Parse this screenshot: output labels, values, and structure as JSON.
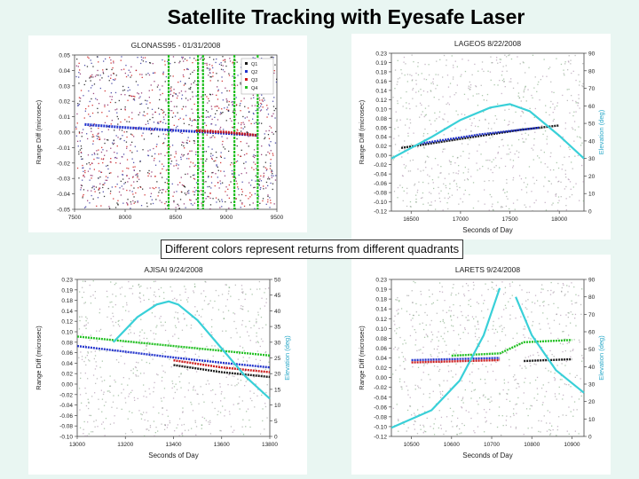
{
  "page": {
    "title": "Satellite Tracking with Eyesafe Laser",
    "caption": "Different colors represent returns from different quadrants"
  },
  "colors": {
    "background": "#e9f6f2",
    "q1": "#1a1a1a",
    "q2": "#2233cc",
    "q3": "#cc1a1a",
    "q4": "#22c022",
    "elevation": "#39d0d8",
    "noise_a": "#8a2a6a",
    "noise_b": "#3a3aa0"
  },
  "chart_data": [
    {
      "type": "scatter",
      "title": "GLONASS95 - 01/31/2008",
      "ylabel": "Range Diff (microsec)",
      "y_ticks": [
        "0.05",
        "0.04",
        "0.03",
        "0.02",
        "0.01",
        "0.00",
        "-0.01",
        "-0.02",
        "-0.03",
        "-0.04",
        "-0.05"
      ],
      "x_ticks": [
        "7500",
        "8000",
        "8500",
        "9000",
        "9500"
      ],
      "xlim": [
        7500,
        9500
      ],
      "ylim": [
        -0.05,
        0.05
      ],
      "legend": [
        "Q1",
        "Q2",
        "Q3",
        "Q4"
      ],
      "legend_position": "top-right",
      "vertical_bands_x": [
        8430,
        8720,
        8770,
        9080,
        9310
      ],
      "series": [
        {
          "name": "Q1",
          "values": []
        },
        {
          "name": "Q2",
          "x": [
            7600,
            8000,
            8400,
            8800,
            9300
          ],
          "y": [
            0.005,
            0.003,
            0.0015,
            0.0,
            -0.002
          ]
        },
        {
          "name": "Q3",
          "x": [
            8700,
            9000,
            9300
          ],
          "y": [
            0.001,
            0.0,
            -0.002
          ]
        },
        {
          "name": "Q4",
          "values": []
        }
      ]
    },
    {
      "type": "scatter",
      "title": "LAGEOS 8/22/2008",
      "xlabel": "Seconds of Day",
      "ylabel": "Range Diff (microsec)",
      "y2label": "Elevation (deg)",
      "y_ticks": [
        "0.23",
        "0.19",
        "0.18",
        "0.16",
        "0.14",
        "0.12",
        "0.10",
        "0.08",
        "0.06",
        "0.04",
        "0.02",
        "0.00",
        "-0.02",
        "-0.04",
        "-0.06",
        "-0.08",
        "-0.10",
        "-0.12"
      ],
      "y2_ticks": [
        "90",
        "80",
        "70",
        "60",
        "50",
        "40",
        "30",
        "20",
        "10",
        "0"
      ],
      "x_ticks": [
        "16500",
        "17000",
        "17500",
        "18000"
      ],
      "xlim": [
        16300,
        18250
      ],
      "ylim": [
        -0.12,
        0.23
      ],
      "y2lim": [
        0,
        90
      ],
      "elevation": {
        "x": [
          16300,
          16700,
          17000,
          17300,
          17500,
          17700,
          18000,
          18250
        ],
        "y": [
          30,
          42,
          52,
          59,
          61,
          57,
          43,
          30
        ]
      },
      "series": [
        {
          "name": "Q1",
          "x": [
            16400,
            17000,
            17600,
            18000
          ],
          "y": [
            0.02,
            0.04,
            0.06,
            0.07
          ]
        },
        {
          "name": "Q2",
          "x": [
            16600,
            17200,
            17800
          ],
          "y": [
            0.03,
            0.05,
            0.065
          ]
        }
      ]
    },
    {
      "type": "scatter",
      "title": "AJISAI 9/24/2008",
      "xlabel": "Seconds of Day",
      "ylabel": "Range Diff (microsec)",
      "y2label": "Elevation (deg)",
      "y_ticks": [
        "0.23",
        "0.19",
        "0.18",
        "0.14",
        "0.12",
        "0.10",
        "0.08",
        "0.06",
        "0.04",
        "0.02",
        "0.00",
        "-0.02",
        "-0.04",
        "-0.06",
        "-0.08",
        "-0.10"
      ],
      "y2_ticks": [
        "50",
        "45",
        "40",
        "35",
        "30",
        "25",
        "20",
        "15",
        "10",
        "5",
        "0"
      ],
      "x_ticks": [
        "13000",
        "13200",
        "13400",
        "13600",
        "13800"
      ],
      "xlim": [
        13000,
        13800
      ],
      "ylim": [
        -0.1,
        0.23
      ],
      "y2lim": [
        0,
        50
      ],
      "elevation": {
        "x": [
          13150,
          13250,
          13330,
          13380,
          13420,
          13500,
          13600,
          13700,
          13800
        ],
        "y": [
          30,
          38,
          42,
          43,
          42,
          37,
          28,
          19,
          12
        ]
      },
      "series": [
        {
          "name": "Q1",
          "x": [
            13400,
            13600,
            13800
          ],
          "y": [
            0.05,
            0.035,
            0.025
          ]
        },
        {
          "name": "Q2",
          "x": [
            13000,
            13200,
            13400,
            13600,
            13800
          ],
          "y": [
            0.09,
            0.078,
            0.066,
            0.055,
            0.045
          ]
        },
        {
          "name": "Q3",
          "x": [
            13400,
            13600,
            13800
          ],
          "y": [
            0.06,
            0.045,
            0.035
          ]
        },
        {
          "name": "Q4",
          "x": [
            13000,
            13400,
            13800
          ],
          "y": [
            0.11,
            0.09,
            0.07
          ]
        }
      ]
    },
    {
      "type": "scatter",
      "title": "LARETS 9/24/2008",
      "xlabel": "Seconds of Day",
      "ylabel": "Range Diff (microsec)",
      "y2label": "Elevation (deg)",
      "y_ticks": [
        "0.23",
        "0.19",
        "0.18",
        "0.14",
        "0.12",
        "0.10",
        "0.08",
        "0.06",
        "0.04",
        "0.02",
        "0.00",
        "-0.02",
        "-0.04",
        "-0.06",
        "-0.08",
        "-0.10",
        "-0.12"
      ],
      "y2_ticks": [
        "90",
        "80",
        "70",
        "60",
        "50",
        "40",
        "30",
        "20",
        "10",
        "0"
      ],
      "x_ticks": [
        "10500",
        "10600",
        "10700",
        "10800",
        "10900"
      ],
      "xlim": [
        10450,
        10930
      ],
      "ylim": [
        -0.12,
        0.23
      ],
      "y2lim": [
        0,
        90
      ],
      "elevation_segments": [
        {
          "x": [
            10450,
            10550,
            10620,
            10680,
            10720
          ],
          "y": [
            5,
            15,
            32,
            58,
            85
          ]
        },
        {
          "x": [
            10760,
            10800,
            10860,
            10930
          ],
          "y": [
            80,
            58,
            38,
            25
          ]
        }
      ],
      "series": [
        {
          "name": "Q1",
          "x": [
            10780,
            10900
          ],
          "y": [
            0.048,
            0.052
          ]
        },
        {
          "name": "Q2",
          "x": [
            10500,
            10720
          ],
          "y": [
            0.05,
            0.055
          ]
        },
        {
          "name": "Q3",
          "x": [
            10500,
            10720
          ],
          "y": [
            0.045,
            0.05
          ]
        },
        {
          "name": "Q4",
          "x": [
            10600,
            10720,
            10780,
            10900
          ],
          "y": [
            0.06,
            0.065,
            0.09,
            0.095
          ]
        }
      ]
    }
  ]
}
